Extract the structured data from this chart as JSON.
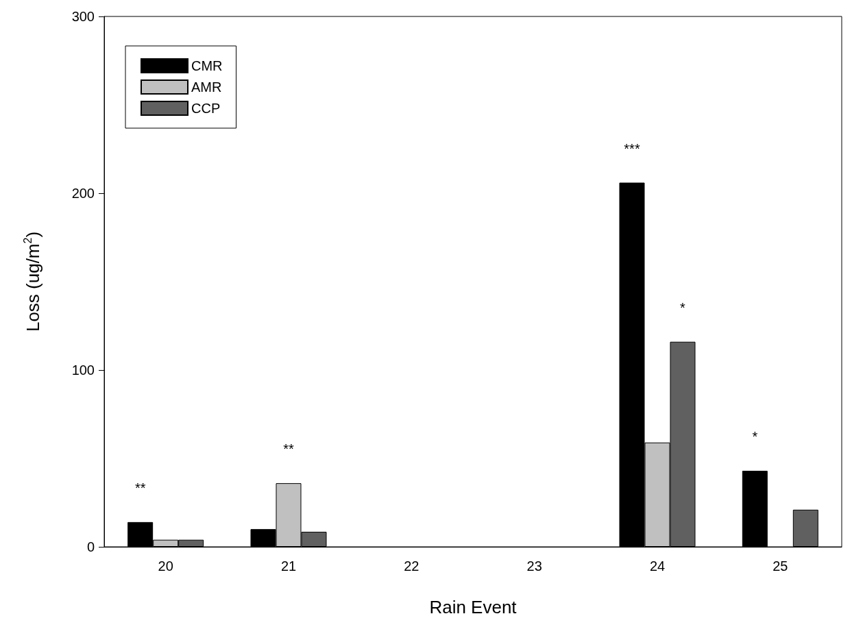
{
  "chart_data": {
    "type": "bar",
    "xlabel": "Rain Event",
    "ylabel": "Loss (ug/m$^{2}$)",
    "categories": [
      "20",
      "21",
      "22",
      "23",
      "24",
      "25"
    ],
    "series": [
      {
        "name": "CMR",
        "color": "#000000",
        "values": [
          14,
          10,
          null,
          null,
          206,
          43
        ]
      },
      {
        "name": "AMR",
        "color": "#c0c0c0",
        "values": [
          4,
          36,
          null,
          null,
          59,
          null
        ]
      },
      {
        "name": "CCP",
        "color": "#606060",
        "values": [
          4,
          8.5,
          null,
          null,
          116,
          21
        ]
      }
    ],
    "ylim": [
      0,
      300
    ],
    "yticks": [
      0,
      100,
      200,
      300
    ],
    "grid": false,
    "legend": "top left",
    "annotations": [
      "**",
      "**",
      "***",
      "*",
      "*"
    ]
  }
}
